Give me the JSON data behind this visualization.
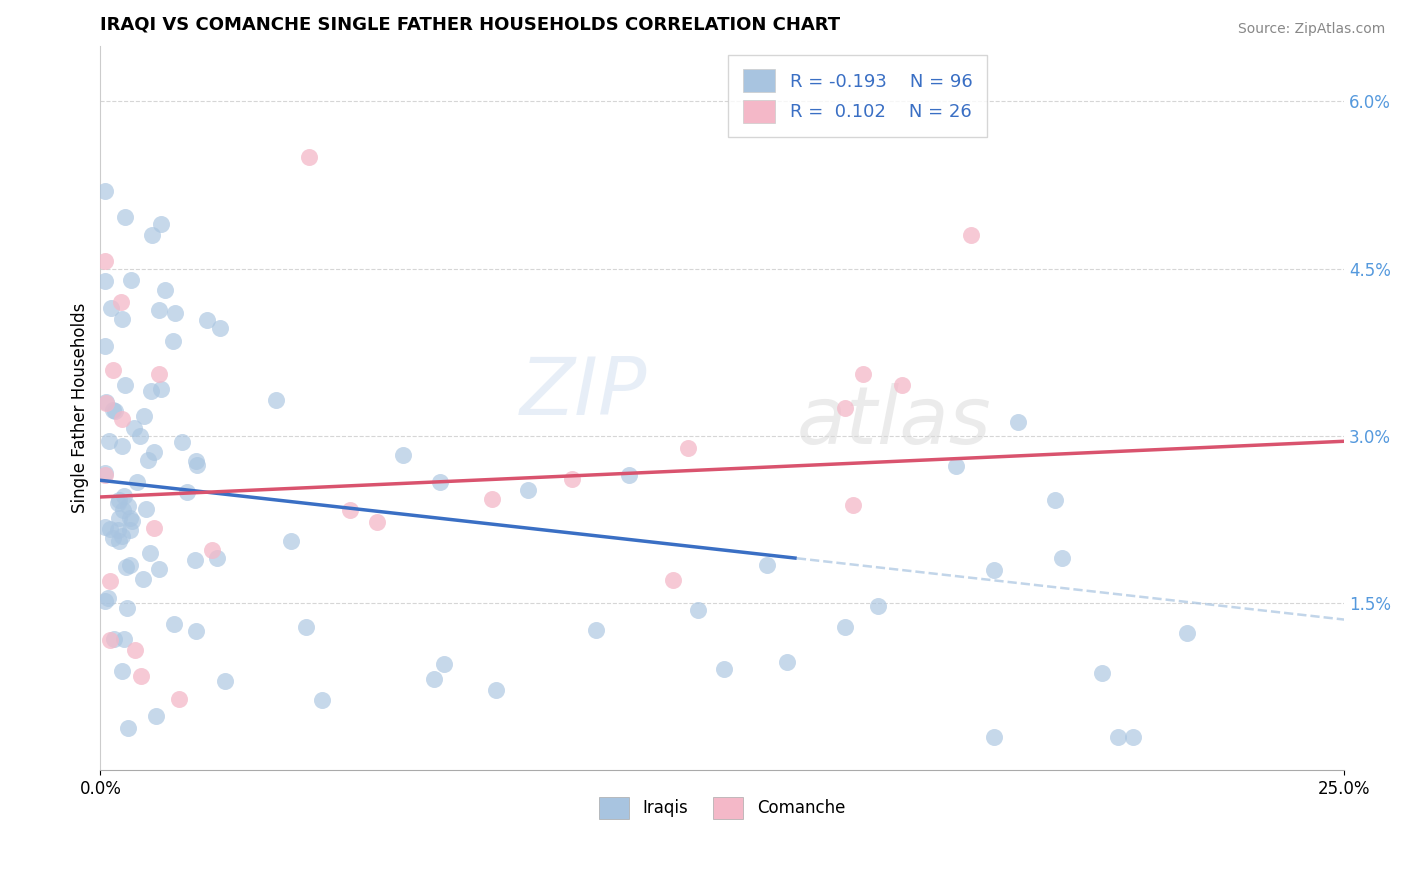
{
  "title": "IRAQI VS COMANCHE SINGLE FATHER HOUSEHOLDS CORRELATION CHART",
  "source": "Source: ZipAtlas.com",
  "ylabel": "Single Father Households",
  "xlim": [
    0.0,
    0.25
  ],
  "ylim": [
    0.0,
    0.065
  ],
  "xtick_positions": [
    0.0,
    0.25
  ],
  "xtick_labels": [
    "0.0%",
    "25.0%"
  ],
  "yticks_right": [
    0.015,
    0.03,
    0.045,
    0.06
  ],
  "ytick_labels_right": [
    "1.5%",
    "3.0%",
    "4.5%",
    "6.0%"
  ],
  "iraqis_color": "#a8c4e0",
  "comanche_color": "#f4b8c8",
  "iraqis_line_color": "#3a6fc4",
  "comanche_line_color": "#d9536e",
  "legend_label1": "Iraqis",
  "legend_label2": "Comanche",
  "watermark_top": "ZIP",
  "watermark_bottom": "atlas",
  "background_color": "#ffffff",
  "grid_color": "#cccccc",
  "right_tick_color": "#5599dd"
}
